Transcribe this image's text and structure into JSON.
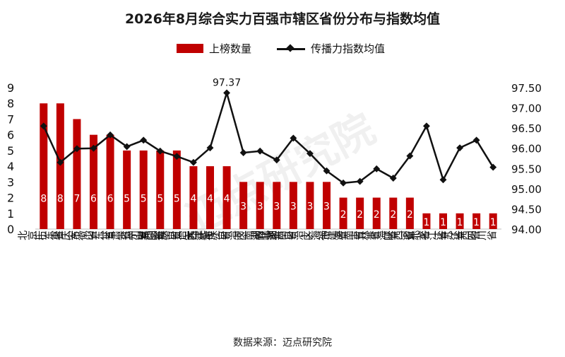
{
  "source_text": "数据来源：迈点研究院",
  "chart_data": {
    "type": "bar",
    "title": "2026年8月综合实力百强市辖区省份分布与指数均值",
    "categories": [
      "北京市",
      "广东省",
      "重庆市",
      "安徽省",
      "山东省",
      "甘肃省",
      "贵州省",
      "山西省",
      "云南省",
      "宁夏回族自治区",
      "天津市",
      "浙江省",
      "广西壮族自治区",
      "河南省",
      "湖北省",
      "湖南省",
      "内蒙古自治区",
      "上海市",
      "福建省",
      "海南省",
      "吉林省",
      "青海省",
      "陕西省",
      "河北省",
      "黑龙江省",
      "江苏省",
      "江西省",
      "四川省"
    ],
    "series": [
      {
        "name": "上榜数量",
        "type": "bar",
        "axis": "left",
        "color": "#c00000",
        "values": [
          8,
          8,
          7,
          6,
          6,
          5,
          5,
          5,
          5,
          4,
          4,
          4,
          3,
          3,
          3,
          3,
          3,
          3,
          2,
          2,
          2,
          2,
          2,
          1,
          1,
          1,
          1,
          1
        ]
      },
      {
        "name": "传播力指数均值",
        "type": "line",
        "axis": "right",
        "color": "#111111",
        "values": [
          96.55,
          95.65,
          95.99,
          96.0,
          96.33,
          96.04,
          96.2,
          95.93,
          95.8,
          95.65,
          96.01,
          97.37,
          95.89,
          95.93,
          95.71,
          96.25,
          95.87,
          95.44,
          95.14,
          95.18,
          95.49,
          95.26,
          95.81,
          96.55,
          95.22,
          96.01,
          96.2,
          95.53
        ]
      }
    ],
    "annotations": [
      {
        "category": "浙江省",
        "series": "传播力指数均值",
        "text": "97.37"
      }
    ],
    "ylim_left": [
      0,
      9
    ],
    "yticks_left": [
      "0",
      "1",
      "2",
      "3",
      "4",
      "5",
      "6",
      "7",
      "8",
      "9"
    ],
    "ylim_right": [
      94.0,
      97.5
    ],
    "yticks_right": [
      "94.00",
      "94.50",
      "95.00",
      "95.50",
      "96.00",
      "96.50",
      "97.00",
      "97.50"
    ],
    "legend": "top-center",
    "grid": false,
    "watermark": "迈点研究院"
  }
}
